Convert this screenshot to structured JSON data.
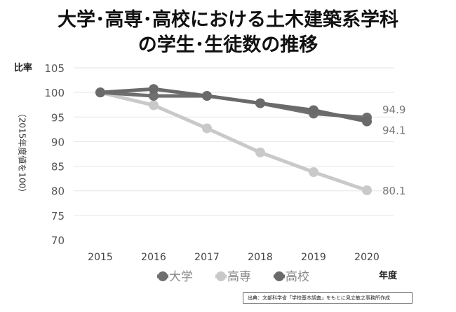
{
  "title_lines": [
    "大学･高専･高校における土木建築系学科",
    "の学生･生徒数の推移"
  ],
  "source": "出典：文部科学省「学校基本調査」をもとに見立敏之事務所作成",
  "colors": {
    "大学": "#6f6f6f",
    "高専": "#c9c9c9",
    "高校": "#6a6a6a",
    "grid": "#e6e6e6"
  },
  "chart_data": {
    "type": "line",
    "title": "大学･高専･高校における土木建築系学科の学生･生徒数の推移",
    "ylabel": "比率",
    "ylabel_note": "（2015年度値を100）",
    "xlabel": "年度",
    "x": [
      2015,
      2016,
      2017,
      2018,
      2019,
      2020
    ],
    "ylim": [
      70,
      105
    ],
    "yticks": [
      70,
      75,
      80,
      85,
      90,
      95,
      100,
      105
    ],
    "grid": true,
    "legend": "bottom",
    "series": [
      {
        "name": "大学",
        "values": [
          100,
          99.3,
          99.3,
          97.8,
          95.7,
          94.9
        ]
      },
      {
        "name": "高専",
        "values": [
          100,
          97.4,
          92.7,
          87.8,
          83.8,
          80.1
        ]
      },
      {
        "name": "高校",
        "values": [
          100,
          100.7,
          99.3,
          97.8,
          96.4,
          94.1
        ]
      }
    ],
    "data_labels": [
      {
        "series": "大学",
        "x": 2020,
        "text": "94.9"
      },
      {
        "series": "高校",
        "x": 2020,
        "text": "94.1"
      },
      {
        "series": "高専",
        "x": 2020,
        "text": "80.1"
      }
    ]
  }
}
